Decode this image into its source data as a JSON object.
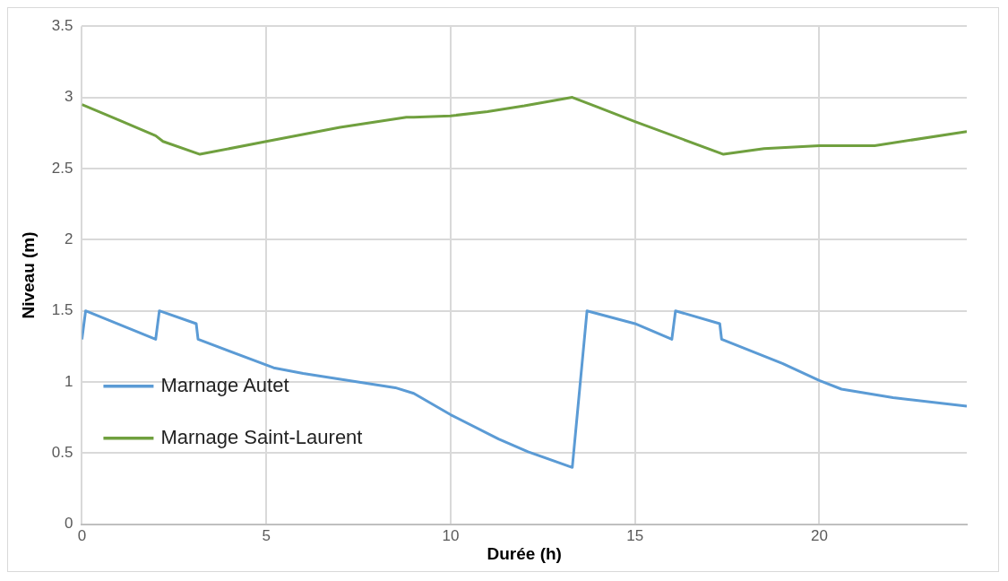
{
  "chart_data": {
    "type": "line",
    "xlabel": "Durée (h)",
    "ylabel": "Niveau (m)",
    "xlim": [
      0,
      24
    ],
    "xticks": [
      0,
      5,
      10,
      15,
      20
    ],
    "ylim": [
      0,
      3.5
    ],
    "yticks": [
      0,
      0.5,
      1,
      1.5,
      2,
      2.5,
      3,
      3.5
    ],
    "grid": true,
    "legend": "bottom left",
    "marker": "none",
    "line_style": "solid",
    "series": [
      {
        "name": "Marnage Autet",
        "color": "#5b9bd5",
        "x": [
          0,
          0.1,
          2,
          2.1,
          3.1,
          3.15,
          5.2,
          6,
          8.5,
          9,
          10,
          11.3,
          12.1,
          13.3,
          13.7,
          15,
          16,
          16.1,
          17.3,
          17.35,
          19,
          20,
          20.6,
          22,
          24
        ],
        "values": [
          1.3,
          1.5,
          1.3,
          1.5,
          1.41,
          1.3,
          1.1,
          1.06,
          0.96,
          0.92,
          0.77,
          0.6,
          0.51,
          0.4,
          1.5,
          1.41,
          1.3,
          1.5,
          1.41,
          1.3,
          1.13,
          1.01,
          0.95,
          0.89,
          0.83
        ]
      },
      {
        "name": "Marnage Saint-Laurent",
        "color": "#70a03f",
        "x": [
          0,
          1,
          2,
          2.2,
          3.2,
          5,
          7,
          8.8,
          9,
          10,
          11,
          12,
          13.3,
          14,
          15,
          17.4,
          18.5,
          20,
          21.5,
          24
        ],
        "values": [
          2.95,
          2.84,
          2.73,
          2.69,
          2.6,
          2.69,
          2.79,
          2.86,
          2.86,
          2.87,
          2.9,
          2.94,
          3.0,
          2.93,
          2.83,
          2.6,
          2.64,
          2.66,
          2.66,
          2.76
        ]
      }
    ]
  }
}
